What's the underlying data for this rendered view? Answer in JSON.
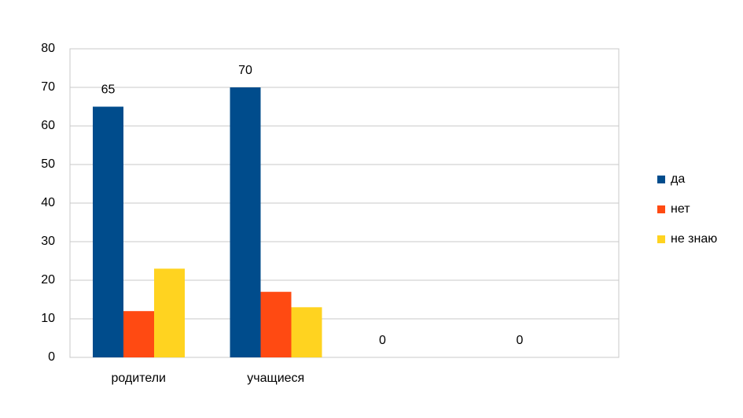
{
  "chart_data": {
    "type": "bar",
    "categories": [
      "родители",
      "учащиеся",
      null,
      null
    ],
    "series": [
      {
        "name": "да",
        "color": "#004C8C",
        "values": [
          65,
          70,
          0,
          0
        ],
        "data_labels": true
      },
      {
        "name": "нет",
        "color": "#FF4A12",
        "values": [
          12,
          17,
          null,
          null
        ]
      },
      {
        "name": "не знаю",
        "color": "#FFD320",
        "values": [
          23,
          13,
          null,
          null
        ]
      }
    ],
    "ylim": [
      0,
      80
    ],
    "yticks": [
      0,
      10,
      20,
      30,
      40,
      50,
      60,
      70,
      80
    ],
    "grid": true,
    "legend": "right"
  }
}
